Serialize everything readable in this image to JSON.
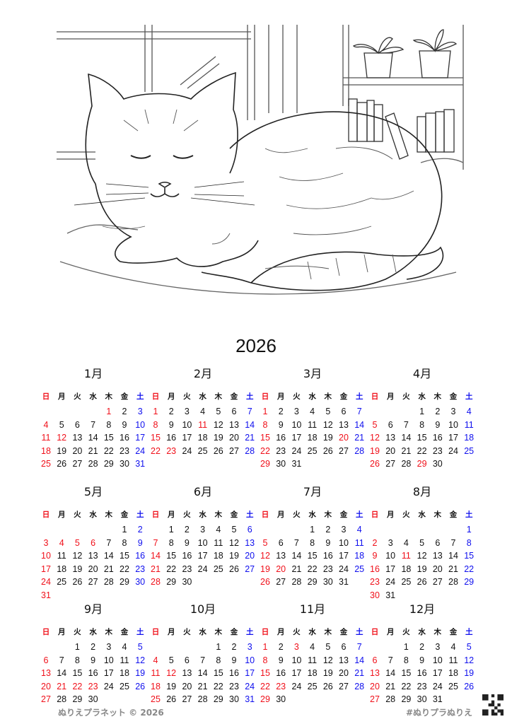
{
  "year": "2026",
  "weekdays": [
    "日",
    "月",
    "火",
    "水",
    "木",
    "金",
    "土"
  ],
  "colors": {
    "sunday_holiday": "#f0101a",
    "saturday": "#1010ee",
    "weekday": "#111111",
    "footer": "#888888"
  },
  "months": [
    {
      "label": "1月",
      "start_weekday": 4,
      "days": 31,
      "holidays": [
        1,
        12
      ]
    },
    {
      "label": "2月",
      "start_weekday": 0,
      "days": 28,
      "holidays": [
        11,
        23
      ]
    },
    {
      "label": "3月",
      "start_weekday": 0,
      "days": 31,
      "holidays": [
        20
      ]
    },
    {
      "label": "4月",
      "start_weekday": 3,
      "days": 30,
      "holidays": [
        29
      ]
    },
    {
      "label": "5月",
      "start_weekday": 5,
      "days": 31,
      "holidays": [
        4,
        5,
        6
      ]
    },
    {
      "label": "6月",
      "start_weekday": 1,
      "days": 30,
      "holidays": []
    },
    {
      "label": "7月",
      "start_weekday": 3,
      "days": 31,
      "holidays": [
        20
      ]
    },
    {
      "label": "8月",
      "start_weekday": 6,
      "days": 31,
      "holidays": [
        11
      ]
    },
    {
      "label": "9月",
      "start_weekday": 2,
      "days": 30,
      "holidays": [
        21,
        22,
        23
      ]
    },
    {
      "label": "10月",
      "start_weekday": 4,
      "days": 31,
      "holidays": [
        12
      ]
    },
    {
      "label": "11月",
      "start_weekday": 0,
      "days": 30,
      "holidays": [
        3,
        23
      ]
    },
    {
      "label": "12月",
      "start_weekday": 2,
      "days": 31,
      "holidays": []
    }
  ],
  "footer": {
    "left": "ぬりえプラネット © 2026",
    "right": "#ぬりプラぬりえ"
  },
  "illustration": {
    "subject": "sleeping-tabby-cat-line-art"
  },
  "icons": {
    "qr": "qr-code-icon"
  }
}
